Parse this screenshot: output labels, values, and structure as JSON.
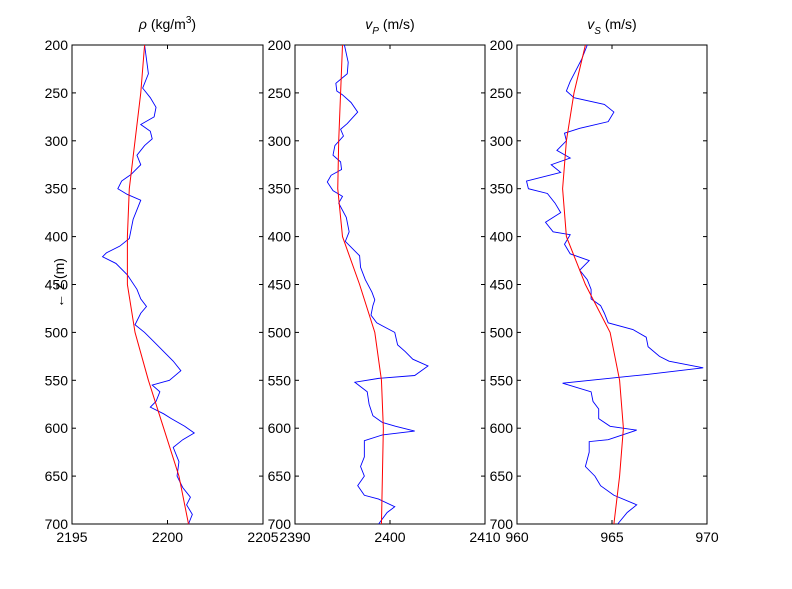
{
  "chart_data": [
    {
      "type": "line",
      "title": {
        "symbol": "ρ",
        "unit_before": " (kg/m",
        "superscript": "3",
        "unit_after": ")"
      },
      "xlabel": "",
      "ylabel": "← z (m)",
      "xlim": [
        2195,
        2205
      ],
      "ylim": [
        200,
        700
      ],
      "y_reversed": true,
      "xticks": [
        2195,
        2200,
        2205
      ],
      "yticks": [
        200,
        250,
        300,
        350,
        400,
        450,
        500,
        550,
        600,
        650,
        700
      ],
      "colors": {
        "log": "#0000ff",
        "trend": "#ff0000"
      },
      "series": [
        {
          "role": "log",
          "points": [
            [
              2198.8,
              200
            ],
            [
              2198.9,
              215
            ],
            [
              2199.0,
              230
            ],
            [
              2198.7,
              245
            ],
            [
              2199.1,
              255
            ],
            [
              2199.4,
              265
            ],
            [
              2199.3,
              275
            ],
            [
              2198.6,
              283
            ],
            [
              2199.1,
              290
            ],
            [
              2199.2,
              298
            ],
            [
              2198.8,
              305
            ],
            [
              2198.4,
              315
            ],
            [
              2198.6,
              325
            ],
            [
              2198.1,
              335
            ],
            [
              2197.6,
              342
            ],
            [
              2197.4,
              350
            ],
            [
              2197.9,
              356
            ],
            [
              2198.6,
              362
            ],
            [
              2198.4,
              372
            ],
            [
              2198.2,
              382
            ],
            [
              2198.1,
              392
            ],
            [
              2198.0,
              402
            ],
            [
              2197.5,
              410
            ],
            [
              2196.8,
              417
            ],
            [
              2196.6,
              421
            ],
            [
              2197.3,
              428
            ],
            [
              2197.9,
              440
            ],
            [
              2198.4,
              455
            ],
            [
              2198.6,
              465
            ],
            [
              2198.9,
              473
            ],
            [
              2198.6,
              480
            ],
            [
              2198.3,
              492
            ],
            [
              2198.8,
              500
            ],
            [
              2199.3,
              510
            ],
            [
              2199.8,
              520
            ],
            [
              2200.3,
              530
            ],
            [
              2200.7,
              540
            ],
            [
              2200.1,
              550
            ],
            [
              2199.2,
              555
            ],
            [
              2199.6,
              562
            ],
            [
              2199.4,
              572
            ],
            [
              2199.1,
              578
            ],
            [
              2199.8,
              585
            ],
            [
              2200.2,
              590
            ],
            [
              2200.9,
              598
            ],
            [
              2201.4,
              605
            ],
            [
              2200.8,
              612
            ],
            [
              2200.3,
              620
            ],
            [
              2200.6,
              635
            ],
            [
              2200.5,
              650
            ],
            [
              2200.8,
              662
            ],
            [
              2201.2,
              672
            ],
            [
              2201.0,
              680
            ],
            [
              2201.3,
              690
            ],
            [
              2201.1,
              700
            ]
          ]
        },
        {
          "role": "trend",
          "points": [
            [
              2198.8,
              200
            ],
            [
              2198.6,
              250
            ],
            [
              2198.3,
              300
            ],
            [
              2198.0,
              350
            ],
            [
              2197.9,
              400
            ],
            [
              2197.9,
              450
            ],
            [
              2198.3,
              500
            ],
            [
              2199.0,
              550
            ],
            [
              2199.8,
              600
            ],
            [
              2200.6,
              650
            ],
            [
              2201.1,
              700
            ]
          ]
        }
      ]
    },
    {
      "type": "line",
      "title": {
        "symbol": "v",
        "subscript": "P",
        "unit_after": " (m/s)"
      },
      "xlabel": "",
      "ylabel": "",
      "xlim": [
        2390,
        2410
      ],
      "ylim": [
        200,
        700
      ],
      "y_reversed": true,
      "xticks": [
        2390,
        2400,
        2410
      ],
      "yticks": [
        200,
        250,
        300,
        350,
        400,
        450,
        500,
        550,
        600,
        650,
        700
      ],
      "colors": {
        "log": "#0000ff",
        "trend": "#ff0000"
      },
      "series": [
        {
          "role": "log",
          "points": [
            [
              2395.2,
              200
            ],
            [
              2395.6,
              218
            ],
            [
              2395.5,
              230
            ],
            [
              2394.3,
              240
            ],
            [
              2394.4,
              248
            ],
            [
              2395.0,
              252
            ],
            [
              2395.9,
              260
            ],
            [
              2396.6,
              270
            ],
            [
              2395.5,
              282
            ],
            [
              2394.8,
              288
            ],
            [
              2395.1,
              295
            ],
            [
              2394.2,
              305
            ],
            [
              2394.0,
              315
            ],
            [
              2394.8,
              322
            ],
            [
              2394.9,
              330
            ],
            [
              2393.8,
              336
            ],
            [
              2393.4,
              343
            ],
            [
              2394.0,
              352
            ],
            [
              2395.0,
              358
            ],
            [
              2394.6,
              365
            ],
            [
              2395.4,
              380
            ],
            [
              2395.7,
              395
            ],
            [
              2395.3,
              405
            ],
            [
              2396.8,
              420
            ],
            [
              2396.9,
              432
            ],
            [
              2397.4,
              445
            ],
            [
              2398.1,
              458
            ],
            [
              2398.4,
              466
            ],
            [
              2398.2,
              472
            ],
            [
              2398.0,
              482
            ],
            [
              2398.6,
              490
            ],
            [
              2400.5,
              500
            ],
            [
              2400.8,
              513
            ],
            [
              2401.6,
              520
            ],
            [
              2402.4,
              528
            ],
            [
              2404.0,
              535
            ],
            [
              2402.6,
              545
            ],
            [
              2398.8,
              548
            ],
            [
              2396.3,
              552
            ],
            [
              2397.6,
              562
            ],
            [
              2397.8,
              575
            ],
            [
              2398.2,
              587
            ],
            [
              2399.2,
              594
            ],
            [
              2400.6,
              598
            ],
            [
              2402.6,
              603
            ],
            [
              2399.2,
              607
            ],
            [
              2397.3,
              613
            ],
            [
              2397.3,
              621
            ],
            [
              2397.3,
              630
            ],
            [
              2396.9,
              640
            ],
            [
              2397.3,
              650
            ],
            [
              2396.6,
              660
            ],
            [
              2397.3,
              670
            ],
            [
              2398.8,
              674
            ],
            [
              2400.5,
              682
            ],
            [
              2399.7,
              688
            ],
            [
              2398.8,
              700
            ]
          ]
        },
        {
          "role": "trend",
          "points": [
            [
              2395.0,
              200
            ],
            [
              2394.8,
              250
            ],
            [
              2394.6,
              300
            ],
            [
              2394.5,
              350
            ],
            [
              2395.0,
              400
            ],
            [
              2396.8,
              450
            ],
            [
              2398.4,
              500
            ],
            [
              2399.1,
              550
            ],
            [
              2399.3,
              600
            ],
            [
              2399.2,
              650
            ],
            [
              2399.1,
              700
            ]
          ]
        }
      ]
    },
    {
      "type": "line",
      "title": {
        "symbol": "v",
        "subscript": "S",
        "unit_after": " (m/s)"
      },
      "xlabel": "",
      "ylabel": "",
      "xlim": [
        960,
        970
      ],
      "ylim": [
        200,
        700
      ],
      "y_reversed": true,
      "xticks": [
        960,
        965,
        970
      ],
      "yticks": [
        200,
        250,
        300,
        350,
        400,
        450,
        500,
        550,
        600,
        650,
        700
      ],
      "colors": {
        "log": "#0000ff",
        "trend": "#ff0000"
      },
      "series": [
        {
          "role": "log",
          "points": [
            [
              963.7,
              200
            ],
            [
              963.4,
              215
            ],
            [
              962.8,
              238
            ],
            [
              962.6,
              248
            ],
            [
              963.0,
              255
            ],
            [
              964.6,
              262
            ],
            [
              965.1,
              270
            ],
            [
              964.8,
              280
            ],
            [
              963.3,
              287
            ],
            [
              962.5,
              292
            ],
            [
              962.6,
              300
            ],
            [
              962.1,
              310
            ],
            [
              962.8,
              318
            ],
            [
              961.8,
              325
            ],
            [
              962.3,
              333
            ],
            [
              960.5,
              342
            ],
            [
              960.6,
              350
            ],
            [
              961.6,
              355
            ],
            [
              962.0,
              365
            ],
            [
              962.3,
              375
            ],
            [
              961.5,
              385
            ],
            [
              961.9,
              395
            ],
            [
              962.8,
              398
            ],
            [
              962.5,
              408
            ],
            [
              962.8,
              418
            ],
            [
              963.8,
              425
            ],
            [
              963.3,
              435
            ],
            [
              963.7,
              445
            ],
            [
              963.9,
              455
            ],
            [
              963.9,
              465
            ],
            [
              964.4,
              472
            ],
            [
              964.6,
              480
            ],
            [
              964.8,
              490
            ],
            [
              966.1,
              497
            ],
            [
              966.8,
              505
            ],
            [
              966.9,
              515
            ],
            [
              967.5,
              525
            ],
            [
              968.0,
              530
            ],
            [
              969.8,
              537
            ],
            [
              966.8,
              544
            ],
            [
              962.4,
              553
            ],
            [
              963.9,
              562
            ],
            [
              964.0,
              572
            ],
            [
              964.3,
              580
            ],
            [
              964.3,
              590
            ],
            [
              964.9,
              598
            ],
            [
              966.3,
              602
            ],
            [
              964.8,
              612
            ],
            [
              963.8,
              614
            ],
            [
              963.8,
              625
            ],
            [
              963.6,
              640
            ],
            [
              964.1,
              650
            ],
            [
              964.4,
              660
            ],
            [
              965.1,
              670
            ],
            [
              966.3,
              680
            ],
            [
              965.8,
              688
            ],
            [
              965.3,
              700
            ]
          ]
        },
        {
          "role": "trend",
          "points": [
            [
              963.6,
              200
            ],
            [
              963.0,
              250
            ],
            [
              962.6,
              300
            ],
            [
              962.4,
              350
            ],
            [
              962.6,
              400
            ],
            [
              963.6,
              450
            ],
            [
              964.9,
              500
            ],
            [
              965.4,
              550
            ],
            [
              965.6,
              600
            ],
            [
              965.4,
              650
            ],
            [
              965.1,
              700
            ]
          ]
        }
      ]
    }
  ]
}
